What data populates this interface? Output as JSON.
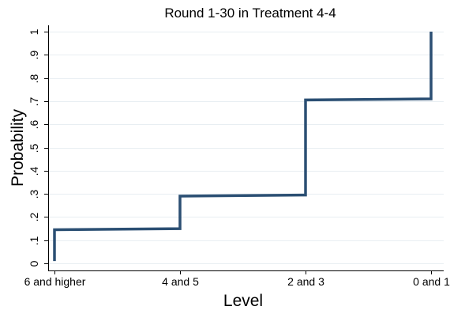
{
  "chart_data": {
    "type": "line",
    "title": "Round 1-30 in Treatment 4-4",
    "xlabel": "Level",
    "ylabel": "Probability",
    "categories": [
      "6 and higher",
      "4 and 5",
      "2 and 3",
      "0 and 1"
    ],
    "ylim": [
      0,
      1
    ],
    "yticks": [
      0,
      0.1,
      0.2,
      0.3,
      0.4,
      0.5,
      0.6,
      0.7,
      0.8,
      0.9,
      1
    ],
    "ytick_labels": [
      "0",
      ".1",
      ".2",
      ".3",
      ".4",
      ".5",
      ".6",
      ".7",
      ".8",
      ".9",
      "1"
    ],
    "grid": true,
    "line_style": "step",
    "series": [
      {
        "color": "#2b4f73",
        "points": [
          {
            "x": 0,
            "y": 0.01
          },
          {
            "x": 0,
            "y": 0.145
          },
          {
            "x": 1,
            "y": 0.15
          },
          {
            "x": 1,
            "y": 0.29
          },
          {
            "x": 2,
            "y": 0.295
          },
          {
            "x": 2,
            "y": 0.705
          },
          {
            "x": 3,
            "y": 0.71
          },
          {
            "x": 3,
            "y": 1.0
          }
        ]
      }
    ]
  }
}
